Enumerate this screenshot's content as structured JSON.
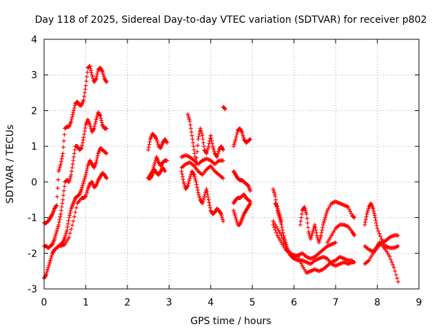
{
  "chart_data": {
    "type": "scatter",
    "title": "Day 118 of 2025, Sidereal Day-to-day VTEC variation (SDTVAR) for receiver p802",
    "xlabel": "GPS time / hours",
    "ylabel": "SDTVAR / TECUs",
    "xlim": [
      0,
      9
    ],
    "ylim": [
      -3,
      4
    ],
    "xticks": [
      0,
      1,
      2,
      3,
      4,
      5,
      6,
      7,
      8,
      9
    ],
    "yticks": [
      -3,
      -2,
      -1,
      0,
      1,
      2,
      3,
      4
    ],
    "grid": true,
    "marker": "+",
    "color": "#ff0000",
    "series": [
      {
        "x": [
          0.0,
          0.05,
          0.1,
          0.15,
          0.2,
          0.25,
          0.3,
          0.35,
          0.4,
          0.45,
          0.5,
          0.55,
          0.6,
          0.65,
          0.7,
          0.75,
          0.8,
          0.85,
          0.9,
          0.95,
          1.0,
          1.05,
          1.1,
          1.15,
          1.2,
          1.25,
          1.3,
          1.35,
          1.4,
          1.45,
          1.5
        ],
        "y": [
          -1.15,
          -1.15,
          -1.1,
          -1.0,
          -0.9,
          -0.75,
          -0.65,
          0.3,
          0.5,
          0.8,
          1.5,
          1.55,
          1.55,
          1.7,
          1.95,
          2.2,
          2.25,
          2.15,
          2.15,
          2.3,
          2.7,
          3.2,
          3.25,
          3.0,
          2.8,
          2.9,
          3.15,
          3.2,
          3.1,
          2.9,
          2.8
        ]
      },
      {
        "x": [
          0.0,
          0.05,
          0.1,
          0.15,
          0.2,
          0.25,
          0.3,
          0.35,
          0.4,
          0.45,
          0.5,
          0.55,
          0.6,
          0.65,
          0.7,
          0.75,
          0.8,
          0.85,
          0.9,
          0.95,
          1.0,
          1.05,
          1.1,
          1.15,
          1.2,
          1.25,
          1.3,
          1.35,
          1.4,
          1.45,
          1.5
        ],
        "y": [
          -1.8,
          -1.8,
          -1.85,
          -1.8,
          -1.75,
          -1.6,
          -1.4,
          -1.2,
          -0.9,
          -0.5,
          0.0,
          0.05,
          0.0,
          0.2,
          0.6,
          1.0,
          1.0,
          0.9,
          0.95,
          1.25,
          1.6,
          1.75,
          1.6,
          1.4,
          1.5,
          1.75,
          1.95,
          1.85,
          1.6,
          1.5,
          1.5
        ]
      },
      {
        "x": [
          0.0,
          0.05,
          0.1,
          0.15,
          0.2,
          0.25,
          0.3,
          0.35,
          0.4,
          0.45,
          0.5,
          0.55,
          0.6,
          0.65,
          0.7,
          0.75,
          0.8,
          0.85,
          0.9,
          0.95,
          1.0,
          1.05,
          1.1,
          1.15,
          1.2,
          1.25,
          1.3,
          1.35,
          1.4,
          1.45,
          1.5
        ],
        "y": [
          -2.7,
          -2.6,
          -2.4,
          -2.2,
          -2.0,
          -1.9,
          -1.85,
          -1.8,
          -1.75,
          -1.7,
          -1.55,
          -1.35,
          -1.0,
          -0.75,
          -0.6,
          -0.45,
          -0.4,
          -0.35,
          -0.2,
          0.0,
          0.2,
          0.45,
          0.6,
          0.5,
          0.4,
          0.55,
          0.8,
          0.95,
          0.9,
          0.85,
          0.8
        ]
      },
      {
        "x": [
          0.4,
          0.5,
          0.6,
          0.7,
          0.8,
          0.9,
          0.95,
          1.0,
          1.05,
          1.1,
          1.15,
          1.2,
          1.25,
          1.3,
          1.35,
          1.4,
          1.45,
          1.5
        ],
        "y": [
          -1.8,
          -1.75,
          -1.55,
          -1.1,
          -0.6,
          -0.45,
          -0.45,
          -0.4,
          -0.2,
          -0.05,
          0.0,
          -0.15,
          -0.1,
          0.05,
          0.15,
          0.25,
          0.2,
          0.1
        ]
      },
      {
        "x": [
          2.5,
          2.55,
          2.6,
          2.65,
          2.7,
          2.75,
          2.8,
          2.85,
          2.9,
          2.95
        ],
        "y": [
          0.9,
          1.2,
          1.35,
          1.3,
          1.2,
          1.0,
          0.95,
          1.1,
          1.2,
          1.1
        ]
      },
      {
        "x": [
          2.5,
          2.55,
          2.6,
          2.65,
          2.7,
          2.75,
          2.8,
          2.85,
          2.9,
          2.95
        ],
        "y": [
          0.1,
          0.2,
          0.3,
          0.5,
          0.7,
          0.55,
          0.45,
          0.55,
          0.6,
          0.6
        ]
      },
      {
        "x": [
          2.5,
          2.55,
          2.6,
          2.65,
          2.7,
          2.75,
          2.8,
          2.85,
          2.9
        ],
        "y": [
          0.1,
          0.1,
          0.2,
          0.35,
          0.25,
          0.2,
          0.3,
          0.4,
          0.3
        ]
      },
      {
        "x": [
          3.3,
          3.4,
          3.5,
          3.6,
          3.7,
          3.8,
          3.9,
          4.0,
          4.1,
          4.2,
          4.3
        ],
        "y": [
          0.7,
          0.75,
          0.7,
          0.6,
          0.5,
          0.6,
          0.65,
          0.6,
          0.5,
          0.6,
          0.6
        ]
      },
      {
        "x": [
          3.3,
          3.4,
          3.5,
          3.6,
          3.7,
          3.8,
          3.9,
          4.0,
          4.1,
          4.2,
          4.3
        ],
        "y": [
          0.4,
          0.5,
          0.55,
          0.45,
          0.3,
          0.2,
          0.35,
          0.45,
          0.3,
          0.2,
          0.1
        ]
      },
      {
        "x": [
          3.45,
          3.5,
          3.55,
          3.6,
          3.65,
          3.7,
          3.75,
          3.8,
          3.85,
          3.9,
          3.95,
          4.0,
          4.05,
          4.1,
          4.15,
          4.2,
          4.25,
          4.3
        ],
        "y": [
          1.9,
          1.7,
          1.3,
          0.9,
          0.5,
          1.2,
          1.5,
          1.3,
          0.9,
          0.8,
          1.0,
          1.3,
          1.0,
          0.8,
          0.7,
          0.9,
          1.0,
          0.9
        ]
      },
      {
        "x": [
          3.3,
          3.35,
          3.4,
          3.45,
          3.5,
          3.55,
          3.6,
          3.65,
          3.7,
          3.75,
          3.8,
          3.85,
          3.9,
          3.95,
          4.0,
          4.05,
          4.1,
          4.15,
          4.2,
          4.25,
          4.3
        ],
        "y": [
          0.3,
          0.0,
          -0.2,
          -0.1,
          0.1,
          0.3,
          0.2,
          0.0,
          -0.3,
          -0.5,
          -0.6,
          -0.4,
          -0.2,
          -0.5,
          -0.8,
          -0.9,
          -0.85,
          -0.75,
          -0.8,
          -0.9,
          -1.1
        ]
      },
      {
        "x": [
          4.55,
          4.6,
          4.65,
          4.7,
          4.75,
          4.8,
          4.85,
          4.9,
          4.95
        ],
        "y": [
          1.0,
          1.2,
          1.45,
          1.5,
          1.4,
          1.2,
          1.1,
          1.15,
          1.2
        ]
      },
      {
        "x": [
          4.55,
          4.6,
          4.65,
          4.7,
          4.75,
          4.8,
          4.85,
          4.9,
          4.95
        ],
        "y": [
          0.3,
          0.2,
          0.1,
          0.05,
          0.05,
          0.0,
          -0.05,
          -0.1,
          -0.25
        ]
      },
      {
        "x": [
          4.55,
          4.6,
          4.65,
          4.7,
          4.75,
          4.8,
          4.85,
          4.9,
          4.95
        ],
        "y": [
          -0.6,
          -0.5,
          -0.45,
          -0.45,
          -0.4,
          -0.35,
          -0.45,
          -0.5,
          -0.55
        ]
      },
      {
        "x": [
          4.55,
          4.6,
          4.65,
          4.7,
          4.75,
          4.8,
          4.85,
          4.9,
          4.95
        ],
        "y": [
          -0.8,
          -1.0,
          -1.2,
          -1.2,
          -1.05,
          -0.9,
          -0.8,
          -0.7,
          -0.6
        ]
      },
      {
        "x": [
          4.3,
          4.35
        ],
        "y": [
          2.1,
          2.05
        ]
      },
      {
        "x": [
          5.5,
          5.55,
          5.6,
          5.65,
          5.7,
          5.75,
          5.8,
          5.85,
          5.9,
          5.95,
          6.0,
          6.1,
          6.2,
          6.3,
          6.4,
          6.5,
          6.6,
          6.7,
          6.8,
          6.9,
          7.0,
          7.1,
          7.2,
          7.3,
          7.4,
          7.45
        ],
        "y": [
          -0.2,
          -0.4,
          -0.8,
          -1.0,
          -1.2,
          -1.5,
          -1.7,
          -1.9,
          -2.0,
          -2.1,
          -2.15,
          -2.2,
          -2.2,
          -2.25,
          -2.3,
          -2.2,
          -2.15,
          -2.1,
          -2.15,
          -2.3,
          -2.35,
          -2.3,
          -2.25,
          -2.3,
          -2.25,
          -2.25
        ]
      },
      {
        "x": [
          5.5,
          5.6,
          5.7,
          5.8,
          5.9,
          6.0,
          6.1,
          6.2,
          6.3,
          6.4,
          6.5,
          6.6,
          6.7,
          6.8,
          6.9,
          7.0
        ],
        "y": [
          -1.1,
          -1.3,
          -1.5,
          -1.8,
          -2.05,
          -2.1,
          -2.05,
          -2.0,
          -2.1,
          -2.15,
          -2.1,
          -2.0,
          -1.9,
          -1.8,
          -1.75,
          -1.7
        ]
      },
      {
        "x": [
          5.5,
          5.6,
          5.7,
          5.8,
          5.9,
          6.0,
          6.1,
          6.2,
          6.3,
          6.4,
          6.5,
          6.6,
          6.7,
          6.8,
          6.9,
          7.0,
          7.1,
          7.2,
          7.3,
          7.4
        ],
        "y": [
          -1.2,
          -1.5,
          -1.7,
          -1.9,
          -2.0,
          -2.05,
          -2.1,
          -2.35,
          -2.55,
          -2.5,
          -2.45,
          -2.5,
          -2.45,
          -2.35,
          -2.25,
          -2.2,
          -2.1,
          -2.15,
          -2.2,
          -2.2
        ]
      },
      {
        "x": [
          6.15,
          6.2,
          6.25,
          6.3,
          6.35,
          6.4,
          6.45,
          6.5,
          6.55,
          6.6,
          6.65,
          6.7,
          6.75,
          6.8,
          6.9,
          7.0,
          7.1,
          7.2,
          7.3,
          7.4,
          7.45
        ],
        "y": [
          -1.2,
          -0.8,
          -0.7,
          -0.9,
          -1.4,
          -1.6,
          -1.4,
          -1.2,
          -1.5,
          -1.7,
          -1.5,
          -1.2,
          -1.0,
          -0.8,
          -0.6,
          -0.55,
          -0.6,
          -0.65,
          -0.7,
          -0.95,
          -1.0
        ]
      },
      {
        "x": [
          6.8,
          6.9,
          7.0,
          7.1,
          7.2,
          7.3,
          7.4,
          7.45
        ],
        "y": [
          -1.7,
          -1.5,
          -1.3,
          -1.2,
          -1.2,
          -1.25,
          -1.4,
          -1.5
        ]
      },
      {
        "x": [
          5.55,
          5.6,
          5.65,
          5.7
        ],
        "y": [
          -0.6,
          -0.7,
          -0.9,
          -1.1
        ]
      },
      {
        "x": [
          7.7,
          7.75,
          7.8,
          7.85,
          7.9,
          7.95,
          8.0,
          8.1,
          8.2,
          8.3,
          8.4,
          8.5
        ],
        "y": [
          -1.2,
          -0.9,
          -0.7,
          -0.6,
          -0.75,
          -1.0,
          -1.3,
          -1.6,
          -1.8,
          -1.85,
          -1.85,
          -1.8
        ]
      },
      {
        "x": [
          7.7,
          7.8,
          7.9,
          8.0,
          8.05,
          8.1,
          8.2,
          8.3,
          8.4,
          8.5
        ],
        "y": [
          -1.8,
          -1.9,
          -1.95,
          -1.8,
          -1.7,
          -1.75,
          -1.9,
          -2.1,
          -2.4,
          -2.8
        ]
      },
      {
        "x": [
          7.7,
          7.8,
          7.9,
          8.0,
          8.1,
          8.2,
          8.3,
          8.4,
          8.5
        ],
        "y": [
          -2.3,
          -2.2,
          -2.0,
          -1.85,
          -1.7,
          -1.65,
          -1.55,
          -1.5,
          -1.5
        ]
      }
    ]
  }
}
